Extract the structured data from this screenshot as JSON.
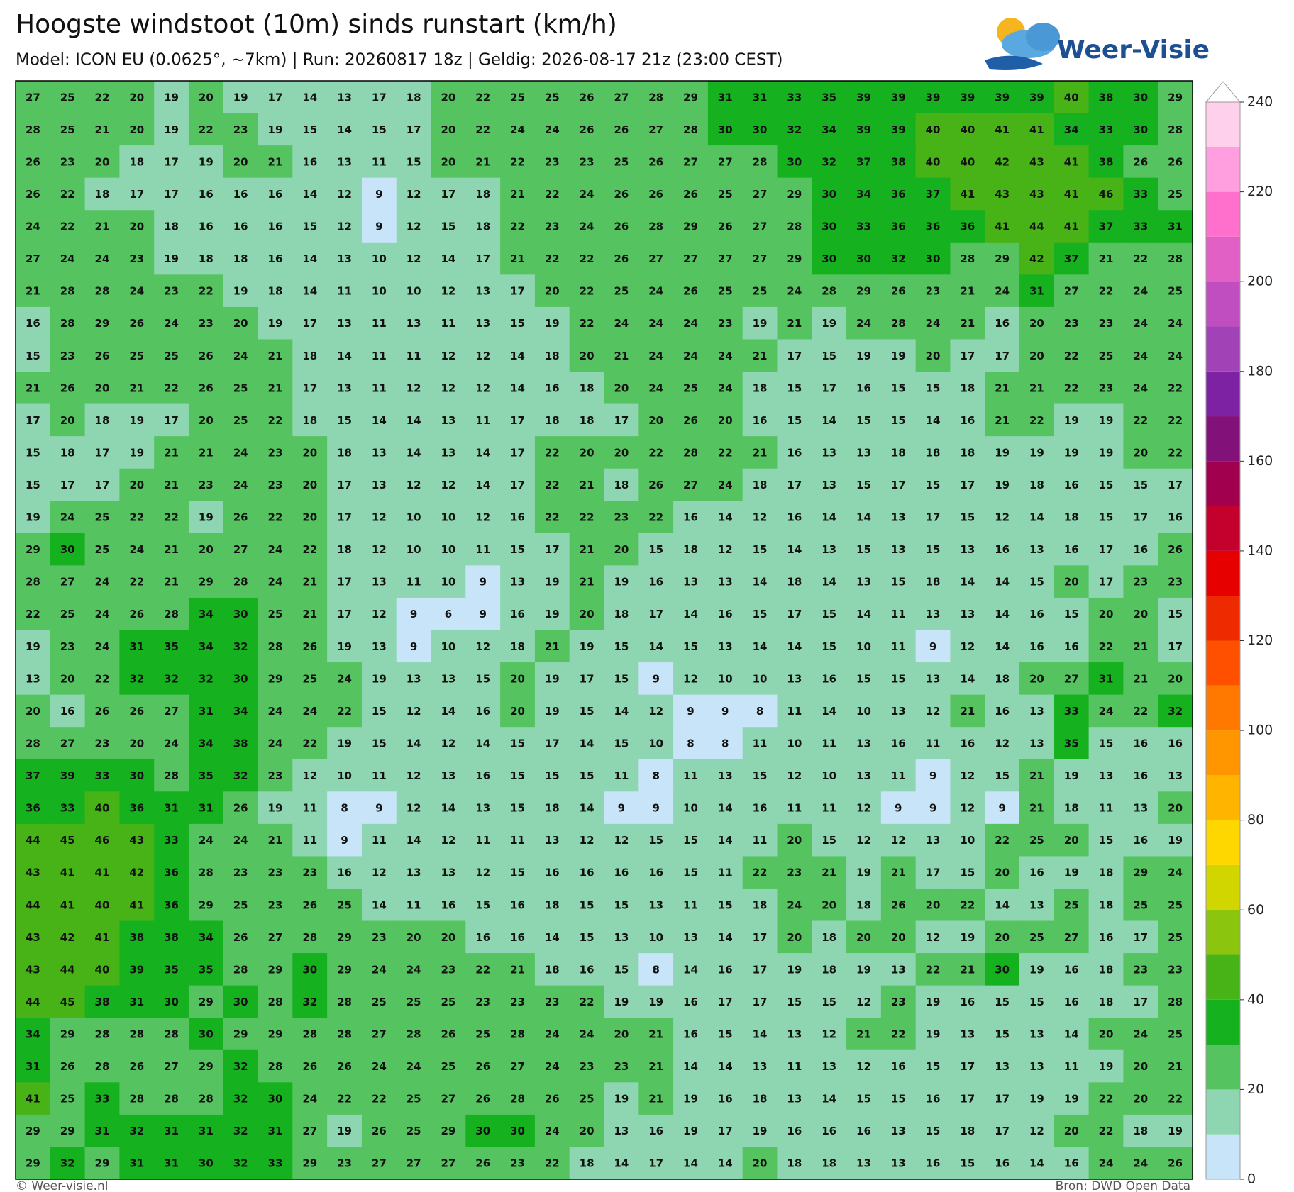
{
  "map": {
    "title": "Hoogste windstoot (10m) sinds runstart (km/h)",
    "subtitle": "Model: ICON EU (0.0625°, ~7km)  |  Run: 20260817 18z  |  Geldig: 2026-08-17 21z (23:00 CEST)",
    "logo": "Weer-Visie",
    "copyright": "© Weer-visie.nl",
    "source": "Bron: DWD Open Data",
    "grid": [
      [
        27,
        25,
        22,
        20,
        19,
        20,
        19,
        17,
        14,
        13,
        17,
        18,
        20,
        22,
        25,
        25,
        26,
        27,
        28,
        29,
        31,
        31,
        33,
        35,
        39,
        39,
        39,
        39,
        39,
        39,
        40,
        38,
        30,
        29
      ],
      [
        28,
        25,
        21,
        20,
        19,
        22,
        23,
        19,
        15,
        14,
        15,
        17,
        20,
        22,
        24,
        24,
        26,
        26,
        27,
        28,
        30,
        30,
        32,
        34,
        39,
        39,
        40,
        40,
        41,
        41,
        34,
        33,
        30,
        28
      ],
      [
        26,
        23,
        20,
        18,
        17,
        19,
        20,
        21,
        16,
        13,
        11,
        15,
        20,
        21,
        22,
        23,
        23,
        25,
        26,
        27,
        27,
        28,
        30,
        32,
        37,
        38,
        40,
        40,
        42,
        43,
        41,
        38,
        26,
        26
      ],
      [
        26,
        22,
        18,
        17,
        17,
        16,
        16,
        16,
        14,
        12,
        9,
        12,
        17,
        18,
        21,
        22,
        24,
        26,
        26,
        26,
        25,
        27,
        29,
        30,
        34,
        36,
        37,
        41,
        43,
        43,
        41,
        46,
        33,
        25
      ],
      [
        24,
        22,
        21,
        20,
        18,
        16,
        16,
        16,
        15,
        12,
        9,
        12,
        15,
        18,
        22,
        23,
        24,
        26,
        28,
        29,
        26,
        27,
        28,
        30,
        33,
        36,
        36,
        36,
        41,
        44,
        41,
        37,
        33,
        31
      ],
      [
        27,
        24,
        24,
        23,
        19,
        18,
        18,
        16,
        14,
        13,
        10,
        12,
        14,
        17,
        21,
        22,
        22,
        26,
        27,
        27,
        27,
        27,
        29,
        30,
        30,
        32,
        30,
        28,
        29,
        42,
        37,
        21,
        22,
        28
      ],
      [
        21,
        28,
        28,
        24,
        23,
        22,
        19,
        18,
        14,
        11,
        10,
        10,
        12,
        13,
        17,
        20,
        22,
        25,
        24,
        26,
        25,
        25,
        24,
        28,
        29,
        26,
        23,
        21,
        24,
        31,
        27,
        22,
        24,
        25
      ],
      [
        16,
        28,
        29,
        26,
        24,
        23,
        20,
        19,
        17,
        13,
        11,
        13,
        11,
        13,
        15,
        19,
        22,
        24,
        24,
        24,
        23,
        19,
        21,
        19,
        24,
        28,
        24,
        21,
        16,
        20,
        23,
        23,
        24,
        24
      ],
      [
        15,
        23,
        26,
        25,
        25,
        26,
        24,
        21,
        18,
        14,
        11,
        11,
        12,
        12,
        14,
        18,
        20,
        21,
        24,
        24,
        24,
        21,
        17,
        15,
        19,
        19,
        20,
        17,
        17,
        20,
        22,
        25,
        24,
        24
      ],
      [
        21,
        26,
        20,
        21,
        22,
        26,
        25,
        21,
        17,
        13,
        11,
        12,
        12,
        12,
        14,
        16,
        18,
        20,
        24,
        25,
        24,
        18,
        15,
        17,
        16,
        15,
        15,
        18,
        21,
        21,
        22,
        23,
        24,
        22
      ],
      [
        17,
        20,
        18,
        19,
        17,
        20,
        25,
        22,
        18,
        15,
        14,
        14,
        13,
        11,
        17,
        18,
        18,
        17,
        20,
        26,
        20,
        16,
        15,
        14,
        15,
        15,
        14,
        16,
        21,
        22,
        19,
        19,
        22,
        22
      ],
      [
        15,
        18,
        17,
        19,
        21,
        21,
        24,
        23,
        20,
        18,
        13,
        14,
        13,
        14,
        17,
        22,
        20,
        20,
        22,
        28,
        22,
        21,
        16,
        13,
        13,
        18,
        18,
        18,
        19,
        19,
        19,
        19,
        20,
        22
      ],
      [
        15,
        17,
        17,
        20,
        21,
        23,
        24,
        23,
        20,
        17,
        13,
        12,
        12,
        14,
        17,
        22,
        21,
        18,
        26,
        27,
        24,
        18,
        17,
        13,
        15,
        17,
        15,
        17,
        19,
        18,
        16,
        15,
        15,
        17
      ],
      [
        19,
        24,
        25,
        22,
        22,
        19,
        26,
        22,
        20,
        17,
        12,
        10,
        10,
        12,
        16,
        22,
        22,
        23,
        22,
        16,
        14,
        12,
        16,
        14,
        14,
        13,
        17,
        15,
        12,
        14,
        18,
        15,
        17,
        16
      ],
      [
        29,
        30,
        25,
        24,
        21,
        20,
        27,
        24,
        22,
        18,
        12,
        10,
        10,
        11,
        15,
        17,
        21,
        20,
        15,
        18,
        12,
        15,
        14,
        13,
        15,
        13,
        15,
        13,
        16,
        13,
        16,
        17,
        16,
        26
      ],
      [
        28,
        27,
        24,
        22,
        21,
        29,
        28,
        24,
        21,
        17,
        13,
        11,
        10,
        9,
        13,
        19,
        21,
        19,
        16,
        13,
        13,
        14,
        18,
        14,
        13,
        15,
        18,
        14,
        14,
        15,
        20,
        17,
        23,
        23
      ],
      [
        22,
        25,
        24,
        26,
        28,
        34,
        30,
        25,
        21,
        17,
        12,
        9,
        6,
        9,
        16,
        19,
        20,
        18,
        17,
        14,
        16,
        15,
        17,
        15,
        14,
        11,
        13,
        13,
        14,
        16,
        15,
        20,
        20,
        15
      ],
      [
        19,
        23,
        24,
        31,
        35,
        34,
        32,
        28,
        26,
        19,
        13,
        9,
        10,
        12,
        18,
        21,
        19,
        15,
        14,
        15,
        13,
        14,
        14,
        15,
        10,
        11,
        9,
        12,
        14,
        16,
        16,
        22,
        21,
        17
      ],
      [
        13,
        20,
        22,
        32,
        32,
        32,
        30,
        29,
        25,
        24,
        19,
        13,
        13,
        15,
        20,
        19,
        17,
        15,
        9,
        12,
        10,
        10,
        13,
        16,
        15,
        15,
        13,
        14,
        18,
        20,
        27,
        31,
        21,
        20
      ],
      [
        20,
        16,
        26,
        26,
        27,
        31,
        34,
        24,
        24,
        22,
        15,
        12,
        14,
        16,
        20,
        19,
        15,
        14,
        12,
        9,
        9,
        8,
        11,
        14,
        10,
        13,
        12,
        21,
        16,
        13,
        33,
        24,
        22,
        32
      ],
      [
        28,
        27,
        23,
        20,
        24,
        34,
        38,
        24,
        22,
        19,
        15,
        14,
        12,
        14,
        15,
        17,
        14,
        15,
        10,
        8,
        8,
        11,
        10,
        11,
        13,
        16,
        11,
        16,
        12,
        13,
        35,
        15,
        16,
        16
      ],
      [
        37,
        39,
        33,
        30,
        28,
        35,
        32,
        23,
        12,
        10,
        11,
        12,
        13,
        16,
        15,
        15,
        15,
        11,
        8,
        11,
        13,
        15,
        12,
        10,
        13,
        11,
        9,
        12,
        15,
        21,
        19,
        13,
        16,
        13
      ],
      [
        36,
        33,
        40,
        36,
        31,
        31,
        26,
        19,
        11,
        8,
        9,
        12,
        14,
        13,
        15,
        18,
        14,
        9,
        9,
        10,
        14,
        16,
        11,
        11,
        12,
        9,
        9,
        12,
        9,
        21,
        18,
        11,
        13,
        20
      ],
      [
        44,
        45,
        46,
        43,
        33,
        24,
        24,
        21,
        11,
        9,
        11,
        14,
        12,
        11,
        11,
        13,
        12,
        12,
        15,
        15,
        14,
        11,
        20,
        15,
        12,
        12,
        13,
        10,
        22,
        25,
        20,
        15,
        16,
        19
      ],
      [
        43,
        41,
        41,
        42,
        36,
        28,
        23,
        23,
        23,
        16,
        12,
        13,
        13,
        12,
        15,
        16,
        16,
        16,
        16,
        15,
        11,
        22,
        23,
        21,
        19,
        21,
        17,
        15,
        20,
        16,
        19,
        18,
        29,
        24
      ],
      [
        44,
        41,
        40,
        41,
        36,
        29,
        25,
        23,
        26,
        25,
        14,
        11,
        16,
        15,
        16,
        18,
        15,
        15,
        13,
        11,
        15,
        18,
        24,
        20,
        18,
        26,
        20,
        22,
        14,
        13,
        25,
        18,
        25,
        25
      ],
      [
        43,
        42,
        41,
        38,
        38,
        34,
        26,
        27,
        28,
        29,
        23,
        20,
        20,
        16,
        16,
        14,
        15,
        13,
        10,
        13,
        14,
        17,
        20,
        18,
        20,
        20,
        12,
        19,
        20,
        25,
        27,
        16,
        17,
        25
      ],
      [
        43,
        44,
        40,
        39,
        35,
        35,
        28,
        29,
        30,
        29,
        24,
        24,
        23,
        22,
        21,
        18,
        16,
        15,
        8,
        14,
        16,
        17,
        19,
        18,
        19,
        13,
        22,
        21,
        30,
        19,
        16,
        18,
        23,
        23
      ],
      [
        44,
        45,
        38,
        31,
        30,
        29,
        30,
        28,
        32,
        28,
        25,
        25,
        25,
        23,
        23,
        23,
        22,
        19,
        19,
        16,
        17,
        17,
        15,
        15,
        12,
        23,
        19,
        16,
        15,
        15,
        16,
        18,
        17,
        28
      ],
      [
        34,
        29,
        28,
        28,
        28,
        30,
        29,
        29,
        28,
        28,
        27,
        28,
        26,
        25,
        28,
        24,
        24,
        20,
        21,
        16,
        15,
        14,
        13,
        12,
        21,
        22,
        19,
        13,
        15,
        13,
        14,
        20,
        24,
        25
      ],
      [
        31,
        26,
        28,
        26,
        27,
        29,
        32,
        28,
        26,
        26,
        24,
        24,
        25,
        26,
        27,
        24,
        23,
        23,
        21,
        14,
        14,
        13,
        11,
        13,
        12,
        16,
        15,
        17,
        13,
        13,
        11,
        19,
        20,
        21
      ],
      [
        41,
        25,
        33,
        28,
        28,
        28,
        32,
        30,
        24,
        22,
        22,
        25,
        27,
        26,
        28,
        26,
        25,
        19,
        21,
        19,
        16,
        18,
        13,
        14,
        15,
        15,
        16,
        17,
        17,
        19,
        19,
        22,
        20,
        22
      ],
      [
        29,
        29,
        31,
        32,
        31,
        31,
        32,
        31,
        27,
        19,
        26,
        25,
        29,
        30,
        30,
        24,
        20,
        13,
        16,
        19,
        17,
        19,
        16,
        16,
        16,
        13,
        15,
        18,
        17,
        12,
        20,
        22,
        18,
        19
      ],
      [
        29,
        32,
        29,
        31,
        31,
        30,
        32,
        33,
        29,
        23,
        27,
        27,
        27,
        26,
        23,
        22,
        18,
        14,
        17,
        14,
        14,
        20,
        18,
        18,
        13,
        13,
        16,
        15,
        16,
        14,
        16,
        24,
        24,
        26
      ]
    ],
    "colorbar": {
      "levels": [
        0,
        10,
        20,
        30,
        40,
        50,
        60,
        70,
        80,
        90,
        100,
        110,
        120,
        130,
        140,
        150,
        160,
        170,
        180,
        190,
        200,
        210,
        220,
        230,
        240
      ],
      "colors": [
        "#c8e4f8",
        "#8ed6b1",
        "#55c460",
        "#16b11f",
        "#48b316",
        "#8cc50e",
        "#d1d600",
        "#ffd700",
        "#ffb400",
        "#ff9600",
        "#ff7800",
        "#ff5000",
        "#ee2a00",
        "#e60000",
        "#c4002c",
        "#a0004e",
        "#82127a",
        "#7d22a3",
        "#a142b6",
        "#c14ec0",
        "#e160c6",
        "#ff70cc",
        "#ff9fe0",
        "#ffd0ec"
      ],
      "ticks": [
        0,
        20,
        40,
        60,
        80,
        100,
        120,
        140,
        160,
        180,
        200,
        220,
        240
      ]
    }
  }
}
